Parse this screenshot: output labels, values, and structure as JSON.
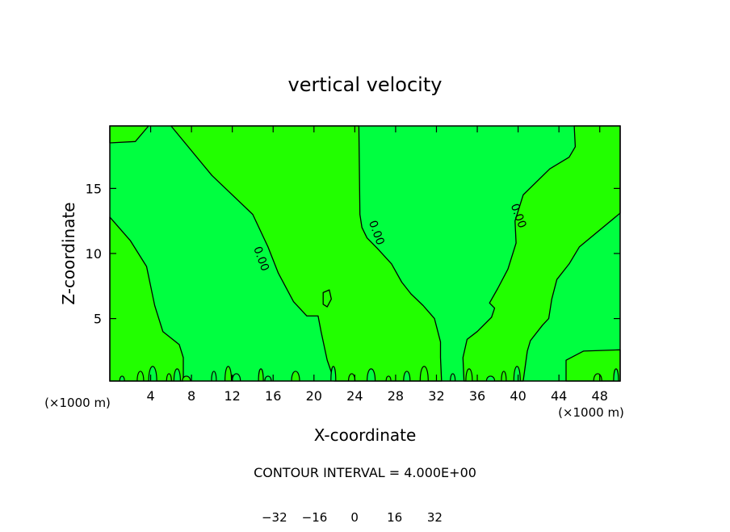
{
  "chart_data": {
    "type": "heatmap",
    "title": "vertical velocity",
    "xlabel": "X-coordinate",
    "ylabel": "Z-coordinate",
    "x_unit_left": "(×1000 m)",
    "x_unit_right": "(×1000 m)",
    "xlim": [
      0,
      50
    ],
    "ylim": [
      0.2,
      19.8
    ],
    "x_ticks": [
      4,
      8,
      12,
      16,
      20,
      24,
      28,
      32,
      36,
      40,
      44,
      48
    ],
    "x_tick_labels": [
      "4",
      "8",
      "12",
      "16",
      "20",
      "24",
      "28",
      "32",
      "36",
      "40",
      "44",
      "48"
    ],
    "y_ticks": [
      5,
      10,
      15
    ],
    "y_tick_labels": [
      "5",
      "10",
      "15"
    ],
    "contour_interval_text": "CONTOUR INTERVAL = 4.000E+00",
    "contour_labels": [
      {
        "text": "0.00",
        "x": 14.5,
        "y": 9.5
      },
      {
        "text": "0.00",
        "x": 25.8,
        "y": 11.5
      },
      {
        "text": "0.00",
        "x": 39.7,
        "y": 12.8
      }
    ],
    "regions": [
      {
        "fill": "#22ff00",
        "level": "0 to 4",
        "points": [
          [
            0,
            0.2
          ],
          [
            0,
            12.8
          ],
          [
            2,
            11
          ],
          [
            3.6,
            9
          ],
          [
            4.4,
            6
          ],
          [
            5.2,
            4
          ],
          [
            6.8,
            3
          ],
          [
            7.2,
            2
          ],
          [
            7.2,
            0.2
          ]
        ]
      },
      {
        "fill": "#22ff00",
        "level": "0 to 4",
        "points": [
          [
            0,
            19.8
          ],
          [
            0,
            18.5
          ],
          [
            2.5,
            18.6
          ],
          [
            3.8,
            19.8
          ]
        ]
      },
      {
        "fill": "#22ff00",
        "level": "0 to 4",
        "points": [
          [
            6,
            19.8
          ],
          [
            10,
            16
          ],
          [
            14,
            13
          ],
          [
            15.5,
            10.5
          ],
          [
            16.5,
            8.5
          ],
          [
            18,
            6.3
          ],
          [
            19.3,
            5.2
          ],
          [
            20.4,
            5.2
          ],
          [
            20.7,
            4
          ],
          [
            21.3,
            1.8
          ],
          [
            22,
            0.2
          ],
          [
            32.5,
            0.2
          ],
          [
            32.4,
            2
          ],
          [
            32.4,
            3.2
          ],
          [
            31.8,
            5
          ],
          [
            30.7,
            6
          ],
          [
            29.5,
            6.9
          ],
          [
            28.6,
            7.8
          ],
          [
            27.6,
            9.2
          ],
          [
            26.2,
            10.4
          ],
          [
            25.2,
            11.2
          ],
          [
            24.7,
            12
          ],
          [
            24.5,
            13
          ],
          [
            24.4,
            19.8
          ]
        ]
      },
      {
        "fill": "#22ff00",
        "level": "0 to 4",
        "points": [
          [
            34.7,
            0.2
          ],
          [
            34.6,
            2
          ],
          [
            35,
            3.4
          ],
          [
            36,
            4
          ],
          [
            37.4,
            5.1
          ],
          [
            37.7,
            5.8
          ],
          [
            37.2,
            6.2
          ],
          [
            38,
            7.3
          ],
          [
            39,
            8.8
          ],
          [
            39.8,
            10.8
          ],
          [
            39.7,
            12.5
          ],
          [
            40.5,
            14.5
          ],
          [
            43.1,
            16.5
          ],
          [
            45,
            17.4
          ],
          [
            45.6,
            18.2
          ],
          [
            45.5,
            19.8
          ],
          [
            50,
            19.8
          ],
          [
            50,
            13.1
          ],
          [
            46,
            10.5
          ],
          [
            45,
            9.2
          ],
          [
            43.8,
            8
          ],
          [
            43.3,
            6.5
          ],
          [
            43,
            5
          ],
          [
            42.4,
            4.5
          ],
          [
            41.2,
            3.3
          ],
          [
            40.9,
            2.5
          ],
          [
            40.5,
            0.2
          ]
        ]
      },
      {
        "fill": "#22ff00",
        "level": "0 to 4",
        "points": [
          [
            20.9,
            7
          ],
          [
            21.5,
            7.2
          ],
          [
            21.7,
            6.5
          ],
          [
            21.3,
            5.9
          ],
          [
            20.9,
            6.1
          ]
        ]
      },
      {
        "fill": "#22ff00",
        "level": "0 to 4",
        "points": [
          [
            44.7,
            0.2
          ],
          [
            44.7,
            1.8
          ],
          [
            46.4,
            2.5
          ],
          [
            50,
            2.6
          ],
          [
            50,
            0.2
          ]
        ]
      }
    ],
    "colorbar": {
      "colors": [
        "#7a00b0",
        "#3a00a0",
        "#1a10a0",
        "#0000d2",
        "#0a40e8",
        "#0080ff",
        "#00b0ff",
        "#00e8ff",
        "#00ffc0",
        "#00ff80",
        "#00ff40",
        "#22ff00",
        "#70ff00",
        "#a8ff00",
        "#e0ff00",
        "#ffd000",
        "#ff9800",
        "#ff6000",
        "#ff3000",
        "#ff5050",
        "#ff7878",
        "#ff9a9a"
      ],
      "tick_labels": [
        "−32",
        "−16",
        "0",
        "16",
        "32"
      ],
      "tick_values": [
        -32,
        -16,
        0,
        16,
        32
      ],
      "range": [
        -40,
        48
      ]
    },
    "background_fill": "#00ff40",
    "grid": false,
    "legend": "bottom-center"
  }
}
